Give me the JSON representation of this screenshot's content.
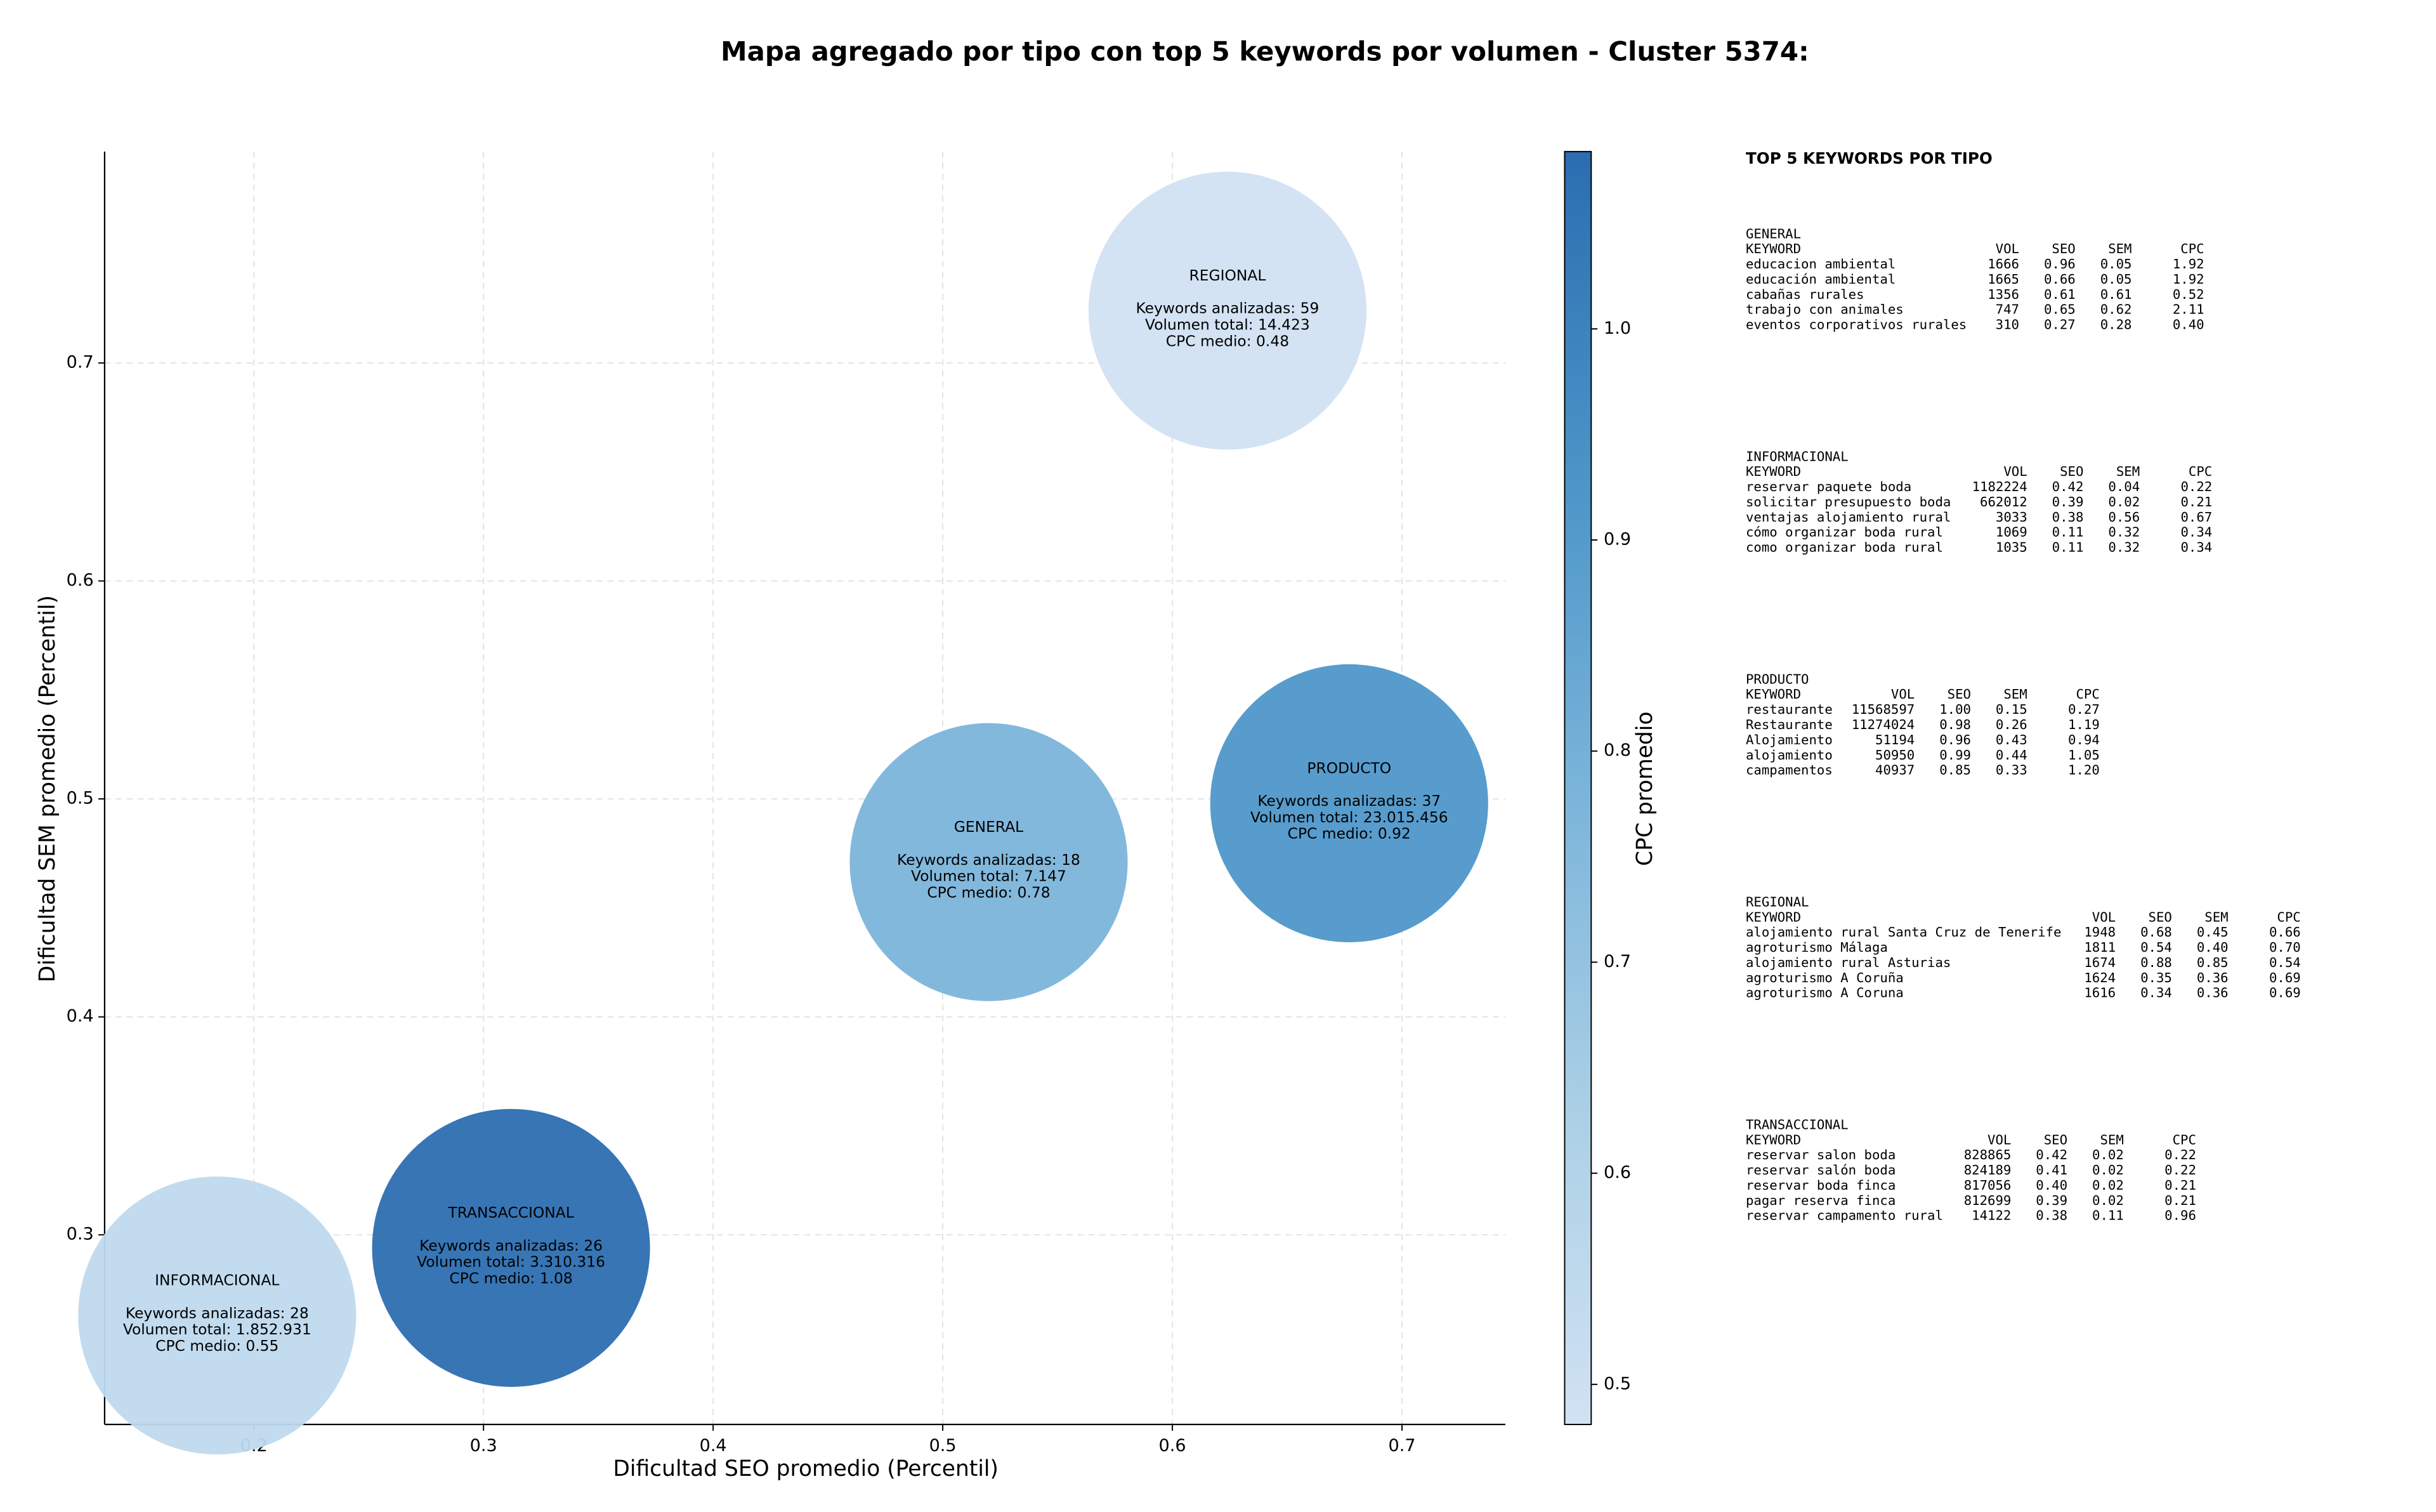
{
  "chart_data": {
    "type": "bubble",
    "title": "Mapa agregado por tipo con top 5 keywords por volumen - Cluster 5374:",
    "xlabel": "Dificultad SEO promedio (Percentil)",
    "ylabel": "Dificultad SEM promedio (Percentil)",
    "xlim": [
      0.135,
      0.745
    ],
    "ylim": [
      0.213,
      0.797
    ],
    "xticks": [
      0.2,
      0.3,
      0.4,
      0.5,
      0.6,
      0.7
    ],
    "yticks": [
      0.3,
      0.4,
      0.5,
      0.6,
      0.7
    ],
    "grid": true,
    "points": [
      {
        "name": "REGIONAL",
        "x": 0.624,
        "y": 0.724,
        "cpc": 0.48,
        "text": [
          "Keywords analizadas: 59",
          "Volumen total: 14.423",
          "CPC medio: 0.48"
        ]
      },
      {
        "name": "PRODUCTO",
        "x": 0.677,
        "y": 0.498,
        "cpc": 0.92,
        "text": [
          "Keywords analizadas: 37",
          "Volumen total: 23.015.456",
          "CPC medio: 0.92"
        ]
      },
      {
        "name": "GENERAL",
        "x": 0.52,
        "y": 0.471,
        "cpc": 0.78,
        "text": [
          "Keywords analizadas: 18",
          "Volumen total: 7.147",
          "CPC medio: 0.78"
        ]
      },
      {
        "name": "TRANSACCIONAL",
        "x": 0.312,
        "y": 0.294,
        "cpc": 1.08,
        "text": [
          "Keywords analizadas: 26",
          "Volumen total: 3.310.316",
          "CPC medio: 1.08"
        ]
      },
      {
        "name": "INFORMACIONAL",
        "x": 0.184,
        "y": 0.263,
        "cpc": 0.55,
        "text": [
          "Keywords analizadas: 28",
          "Volumen total: 1.852.931",
          "CPC medio: 0.55"
        ]
      }
    ],
    "colorbar": {
      "label": "CPC promedio",
      "lim": [
        0.481,
        1.084
      ],
      "ticks": [
        0.5,
        0.6,
        0.7,
        0.8,
        0.9,
        {
          "value": 1,
          "label": "1.0"
        }
      ],
      "colors": [
        "#d1e2f3",
        "#aacfe5",
        "#7ab4da",
        "#4a94c7",
        "#2b6db0"
      ]
    }
  },
  "side_panel": {
    "title": "TOP 5 KEYWORDS POR TIPO",
    "sections": [
      {
        "title": "GENERAL",
        "header": [
          "KEYWORD",
          "VOL",
          "SEO",
          "SEM",
          "CPC"
        ],
        "rows": [
          [
            "educacion ambiental",
            "1666",
            "0.96",
            "0.05",
            "1.92"
          ],
          [
            "educación ambiental",
            "1665",
            "0.66",
            "0.05",
            "1.92"
          ],
          [
            "cabañas rurales",
            "1356",
            "0.61",
            "0.61",
            "0.52"
          ],
          [
            "trabajo con animales",
            "747",
            "0.65",
            "0.62",
            "2.11"
          ],
          [
            "eventos corporativos rurales",
            "310",
            "0.27",
            "0.28",
            "0.40"
          ]
        ]
      },
      {
        "title": "INFORMACIONAL",
        "header": [
          "KEYWORD",
          "VOL",
          "SEO",
          "SEM",
          "CPC"
        ],
        "rows": [
          [
            "reservar paquete boda",
            "1182224",
            "0.42",
            "0.04",
            "0.22"
          ],
          [
            "solicitar presupuesto boda",
            "662012",
            "0.39",
            "0.02",
            "0.21"
          ],
          [
            "ventajas alojamiento rural",
            "3033",
            "0.38",
            "0.56",
            "0.67"
          ],
          [
            "cómo organizar boda rural",
            "1069",
            "0.11",
            "0.32",
            "0.34"
          ],
          [
            "como organizar boda rural",
            "1035",
            "0.11",
            "0.32",
            "0.34"
          ]
        ]
      },
      {
        "title": "PRODUCTO",
        "header": [
          "KEYWORD",
          "VOL",
          "SEO",
          "SEM",
          "CPC"
        ],
        "rows": [
          [
            "restaurante",
            "11568597",
            "1.00",
            "0.15",
            "0.27"
          ],
          [
            "Restaurante",
            "11274024",
            "0.98",
            "0.26",
            "1.19"
          ],
          [
            "Alojamiento",
            "51194",
            "0.96",
            "0.43",
            "0.94"
          ],
          [
            "alojamiento",
            "50950",
            "0.99",
            "0.44",
            "1.05"
          ],
          [
            "campamentos",
            "40937",
            "0.85",
            "0.33",
            "1.20"
          ]
        ]
      },
      {
        "title": "REGIONAL",
        "header": [
          "KEYWORD",
          "VOL",
          "SEO",
          "SEM",
          "CPC"
        ],
        "rows": [
          [
            "alojamiento rural Santa Cruz de Tenerife",
            "1948",
            "0.68",
            "0.45",
            "0.66"
          ],
          [
            "agroturismo Málaga",
            "1811",
            "0.54",
            "0.40",
            "0.70"
          ],
          [
            "alojamiento rural Asturias",
            "1674",
            "0.88",
            "0.85",
            "0.54"
          ],
          [
            "agroturismo A Coruña",
            "1624",
            "0.35",
            "0.36",
            "0.69"
          ],
          [
            "agroturismo A Coruna",
            "1616",
            "0.34",
            "0.36",
            "0.69"
          ]
        ]
      },
      {
        "title": "TRANSACCIONAL",
        "header": [
          "KEYWORD",
          "VOL",
          "SEO",
          "SEM",
          "CPC"
        ],
        "rows": [
          [
            "reservar salon boda",
            "828865",
            "0.42",
            "0.02",
            "0.22"
          ],
          [
            "reservar salón boda",
            "824189",
            "0.41",
            "0.02",
            "0.22"
          ],
          [
            "reservar boda finca",
            "817056",
            "0.40",
            "0.02",
            "0.21"
          ],
          [
            "pagar reserva finca",
            "812699",
            "0.39",
            "0.02",
            "0.21"
          ],
          [
            "reservar campamento rural",
            "14122",
            "0.38",
            "0.11",
            "0.96"
          ]
        ]
      }
    ]
  }
}
